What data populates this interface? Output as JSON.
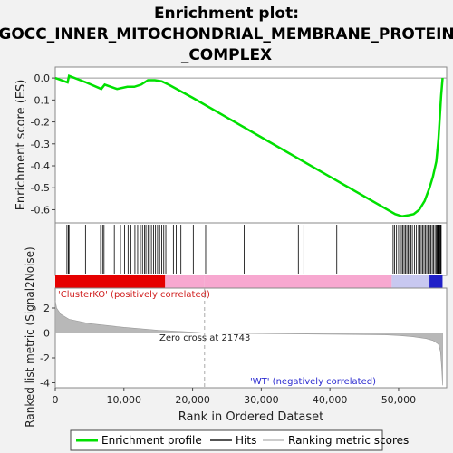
{
  "chart_data": {
    "type": "line",
    "title_lines": [
      "Enrichment plot:",
      "GOCC_INNER_MITOCHONDRIAL_MEMBRANE_PROTEIN",
      "_COMPLEX"
    ],
    "xlabel": "Rank in Ordered Dataset",
    "ylabel_top": "Enrichment score (ES)",
    "ylabel_bottom": "Ranked list metric (Signal2Noise)",
    "xlim": [
      0,
      57000
    ],
    "x_ticks": [
      0,
      10000,
      20000,
      30000,
      40000,
      50000
    ],
    "x_tick_labels": [
      "0",
      "10,000",
      "20,000",
      "30,000",
      "40,000",
      "50,000"
    ],
    "es_ylim": [
      -0.66,
      0.05
    ],
    "es_ticks": [
      0.0,
      -0.1,
      -0.2,
      -0.3,
      -0.4,
      -0.5,
      -0.6
    ],
    "es_tick_labels": [
      "0.0",
      "-0.1",
      "-0.2",
      "-0.3",
      "-0.4",
      "-0.5",
      "-0.6"
    ],
    "metric_ylim": [
      -4.4,
      3.6
    ],
    "metric_ticks": [
      2,
      0,
      -2,
      -4
    ],
    "metric_tick_labels": [
      "2",
      "0",
      "-2",
      "-4"
    ],
    "enrichment_profile": {
      "x": [
        0,
        1800,
        2000,
        4500,
        6700,
        7200,
        9000,
        10500,
        11500,
        12500,
        13500,
        14500,
        15500,
        16500,
        20000,
        30000,
        40000,
        49500,
        50500,
        51500,
        52200,
        53000,
        53800,
        54500,
        55000,
        55500,
        55800,
        56000,
        56200,
        56400
      ],
      "y": [
        0.0,
        -0.02,
        0.01,
        -0.02,
        -0.05,
        -0.03,
        -0.05,
        -0.04,
        -0.04,
        -0.03,
        -0.01,
        -0.01,
        -0.015,
        -0.03,
        -0.09,
        -0.27,
        -0.45,
        -0.62,
        -0.63,
        -0.625,
        -0.62,
        -0.6,
        -0.56,
        -0.5,
        -0.45,
        -0.38,
        -0.28,
        -0.18,
        -0.08,
        0.0
      ]
    },
    "hits": [
      1700,
      1900,
      2000,
      4400,
      6600,
      6900,
      7100,
      8600,
      9500,
      10100,
      10600,
      11000,
      11600,
      12000,
      12400,
      12700,
      13000,
      13200,
      13500,
      13700,
      14000,
      14300,
      14600,
      14900,
      15200,
      15500,
      15800,
      16100,
      17200,
      17600,
      18300,
      20100,
      21900,
      27500,
      35400,
      36200,
      41000,
      49200,
      49400,
      49700,
      50000,
      50200,
      50400,
      50600,
      50800,
      51000,
      51200,
      51400,
      51600,
      51800,
      52000,
      52300,
      52600,
      52900,
      53100,
      53300,
      53500,
      53700,
      53900,
      54100,
      54300,
      54500,
      54700,
      54900,
      55100,
      55300,
      55500,
      55600,
      55700,
      55800,
      55900,
      56000,
      56100,
      56200
    ],
    "ranked_metric": {
      "x": [
        0,
        200,
        800,
        2000,
        5000,
        10000,
        15000,
        20000,
        21743,
        25000,
        30000,
        40000,
        48000,
        50000,
        52000,
        54000,
        55000,
        55800,
        56100,
        56300,
        56400
      ],
      "y": [
        2.6,
        2.0,
        1.5,
        1.1,
        0.75,
        0.45,
        0.22,
        0.07,
        0.0,
        -0.02,
        -0.05,
        -0.1,
        -0.15,
        -0.2,
        -0.3,
        -0.45,
        -0.6,
        -0.9,
        -1.5,
        -3.0,
        -4.2
      ]
    },
    "zero_cross_label": "Zero cross at 21743",
    "zero_cross_x": 21743,
    "pos_corr_label": "'ClusterKO' (positively correlated)",
    "neg_corr_label": "'WT' (negatively correlated)",
    "legend": [
      "Enrichment profile",
      "Hits",
      "Ranking metric scores"
    ],
    "colors": {
      "profile": "#00e000",
      "hits": "#000000",
      "metric_fill": "#b8b8b8",
      "pos": "#e60000",
      "pos_light": "#f7a8d0",
      "neg_light": "#c8c8f0",
      "neg": "#2020c8"
    }
  }
}
